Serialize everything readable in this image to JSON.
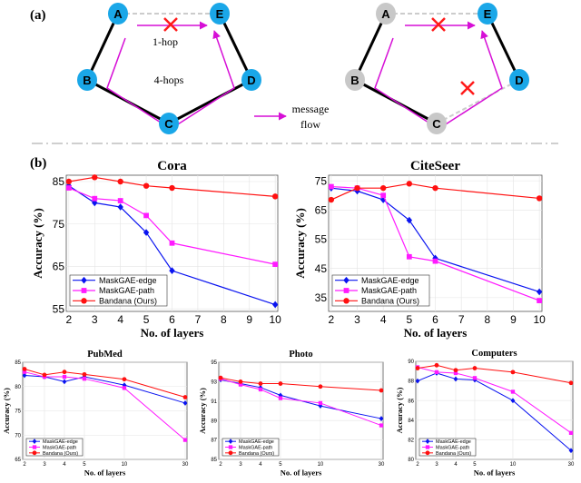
{
  "panel_a": {
    "label": "(a)",
    "nodes": [
      "A",
      "B",
      "C",
      "D",
      "E"
    ],
    "one_hop": "1-hop",
    "four_hops": "4-hops",
    "legend_line1": "message",
    "legend_line2": "flow",
    "colors": {
      "active_node": "#1aa7e8",
      "dropped_node": "#c8c8c8",
      "message": "#d60fd6",
      "cross": "#ff1a1a",
      "edge": "#000000"
    }
  },
  "panel_b": {
    "label": "(b)"
  },
  "legend_labels": [
    "MaskGAE-edge",
    "MaskGAE-path",
    "Bandana (Ours)"
  ],
  "series_colors": {
    "MaskGAE-edge": "#0a14f0",
    "MaskGAE-path": "#ff1aff",
    "Bandana (Ours)": "#ff1010"
  },
  "chart_data": [
    {
      "type": "line",
      "title": "Cora",
      "xlabel": "No. of layers",
      "ylabel": "Accuracy (%)",
      "x": [
        2,
        3,
        4,
        5,
        6,
        10
      ],
      "xticks": [
        2,
        3,
        4,
        5,
        6,
        7,
        8,
        9,
        10
      ],
      "yticks": [
        55,
        65,
        75,
        85
      ],
      "ylim": [
        54.4,
        86.5
      ],
      "grid": true,
      "legend": "bottom-left",
      "series": [
        {
          "name": "MaskGAE-edge",
          "marker": "diamond",
          "values": [
            84,
            80,
            79,
            73,
            64,
            56
          ]
        },
        {
          "name": "MaskGAE-path",
          "marker": "square",
          "values": [
            83.5,
            81,
            80.5,
            77,
            70.5,
            65.5
          ]
        },
        {
          "name": "Bandana (Ours)",
          "marker": "circle",
          "values": [
            85,
            86,
            85,
            84,
            83.5,
            81.5
          ]
        }
      ]
    },
    {
      "type": "line",
      "title": "CiteSeer",
      "xlabel": "No. of layers",
      "ylabel": "Accuracy (%)",
      "x": [
        2,
        3,
        4,
        5,
        6,
        10
      ],
      "xticks": [
        2,
        3,
        4,
        5,
        6,
        7,
        8,
        9,
        10
      ],
      "yticks": [
        35,
        45,
        55,
        65,
        75
      ],
      "ylim": [
        30.3,
        76.9
      ],
      "grid": true,
      "legend": "bottom-left",
      "series": [
        {
          "name": "MaskGAE-edge",
          "marker": "diamond",
          "values": [
            72.5,
            71.5,
            68.5,
            61.5,
            48.5,
            37
          ]
        },
        {
          "name": "MaskGAE-path",
          "marker": "square",
          "values": [
            73,
            72.5,
            70,
            49,
            47.5,
            34
          ]
        },
        {
          "name": "Bandana (Ours)",
          "marker": "circle",
          "values": [
            68.5,
            72.5,
            72.5,
            74,
            72.5,
            69
          ]
        }
      ]
    },
    {
      "type": "line",
      "title": "PubMed",
      "xlabel": "No. of layers",
      "ylabel": "Accuracy (%)",
      "x": [
        2,
        3,
        4,
        5,
        10,
        30
      ],
      "xticks": [
        2,
        3,
        4,
        5,
        10,
        30
      ],
      "yticks": [
        65,
        70,
        75,
        80,
        85
      ],
      "ylim": [
        65,
        85
      ],
      "grid": true,
      "legend": "bottom-left",
      "series": [
        {
          "name": "MaskGAE-edge",
          "marker": "diamond",
          "values": [
            82.3,
            82,
            81,
            82,
            80.3,
            76.6
          ]
        },
        {
          "name": "MaskGAE-path",
          "marker": "square",
          "values": [
            83,
            82,
            82,
            81.6,
            79.7,
            69
          ]
        },
        {
          "name": "Bandana (Ours)",
          "marker": "circle",
          "values": [
            83.6,
            82.4,
            83,
            82.5,
            81.5,
            77.8
          ]
        }
      ]
    },
    {
      "type": "line",
      "title": "Photo",
      "xlabel": "No. of layers",
      "ylabel": "Accuracy (%)",
      "x": [
        2,
        3,
        4,
        5,
        10,
        30
      ],
      "xticks": [
        2,
        3,
        4,
        5,
        10,
        30
      ],
      "yticks": [
        85,
        87,
        89,
        91,
        93,
        95
      ],
      "ylim": [
        85,
        95
      ],
      "grid": true,
      "legend": "bottom-left",
      "series": [
        {
          "name": "MaskGAE-edge",
          "marker": "diamond",
          "values": [
            93.2,
            92.8,
            92.4,
            91.6,
            90.5,
            89.2
          ]
        },
        {
          "name": "MaskGAE-path",
          "marker": "square",
          "values": [
            93.3,
            92.7,
            92.2,
            91.3,
            90.8,
            88.5
          ]
        },
        {
          "name": "Bandana (Ours)",
          "marker": "circle",
          "values": [
            93.4,
            93,
            92.8,
            92.8,
            92.5,
            92.1
          ]
        }
      ]
    },
    {
      "type": "line",
      "title": "Computers",
      "xlabel": "No. of layers",
      "ylabel": "Accuracy (%)",
      "x": [
        2,
        3,
        4,
        5,
        10,
        30
      ],
      "xticks": [
        2,
        3,
        4,
        5,
        10,
        30
      ],
      "yticks": [
        80,
        82,
        84,
        86,
        88,
        90
      ],
      "ylim": [
        80,
        90
      ],
      "grid": true,
      "legend": "bottom-left",
      "series": [
        {
          "name": "MaskGAE-edge",
          "marker": "diamond",
          "values": [
            88,
            88.8,
            88.2,
            88.1,
            86,
            80.9
          ]
        },
        {
          "name": "MaskGAE-path",
          "marker": "square",
          "values": [
            89.4,
            88.9,
            88.8,
            88.3,
            86.9,
            82.7
          ]
        },
        {
          "name": "Bandana (Ours)",
          "marker": "circle",
          "values": [
            89.3,
            89.6,
            89.1,
            89.3,
            88.9,
            87.8
          ]
        }
      ]
    }
  ]
}
